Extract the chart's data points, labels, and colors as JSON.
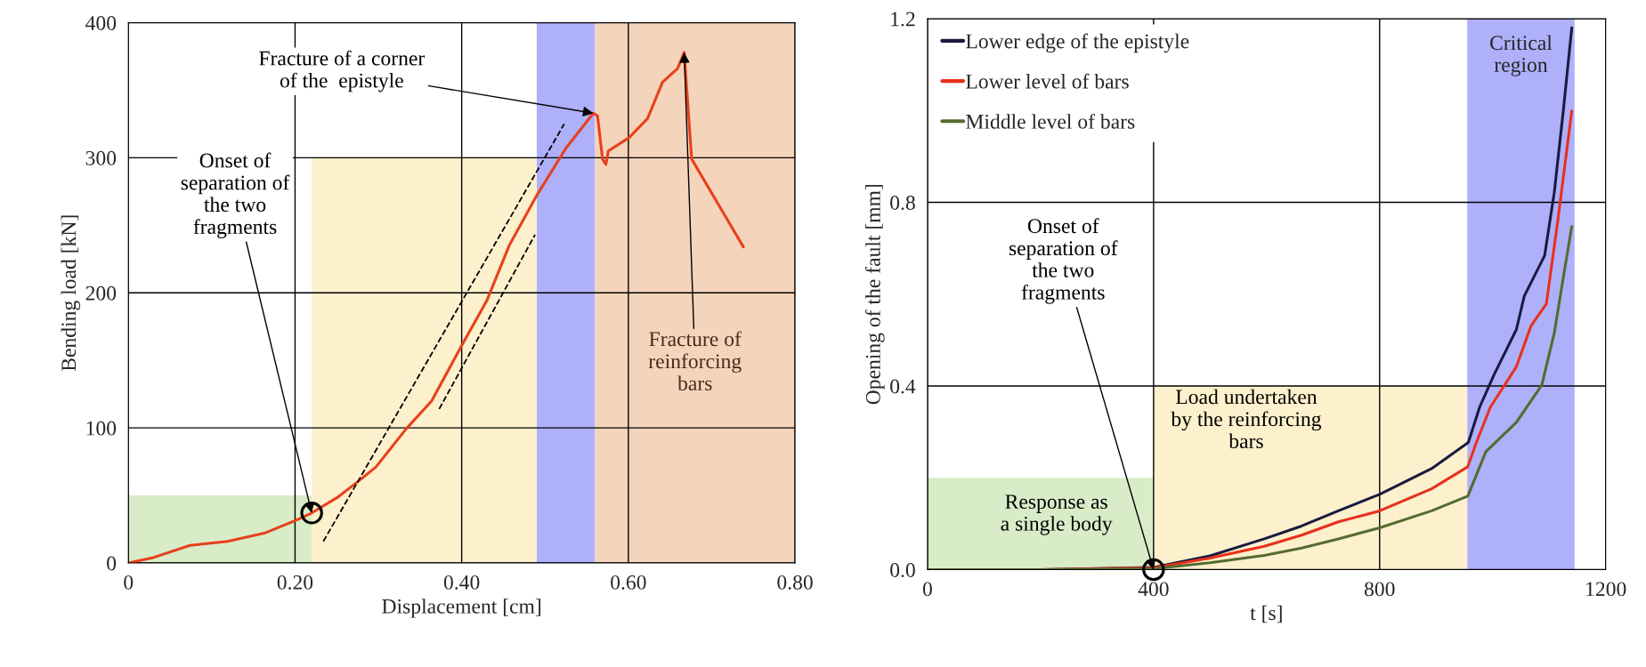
{
  "chart_data": [
    {
      "type": "line",
      "xlabel": "Displacement [cm]",
      "ylabel": "Bending load [kN]",
      "xlim": [
        0,
        0.8
      ],
      "ylim": [
        0,
        400
      ],
      "xticks": [
        0,
        {
          "value": 0.2,
          "label": "0.20"
        },
        {
          "value": 0.4,
          "label": "0.40"
        },
        {
          "value": 0.6,
          "label": "0.60"
        },
        {
          "value": 0.8,
          "label": "0.80"
        }
      ],
      "yticks": [
        0,
        100,
        200,
        300,
        400
      ],
      "grid": true,
      "legend": false,
      "series": [
        {
          "type": "area",
          "color": "#d8ecc8",
          "x": [
            0,
            0.22
          ],
          "values": [
            50,
            50
          ]
        },
        {
          "type": "area",
          "color": "#fdf0cc",
          "x": [
            0.22,
            0.49
          ],
          "values": [
            300,
            300
          ]
        },
        {
          "color": "#e8401c",
          "x": [
            0,
            0.03,
            0.074,
            0.119,
            0.163,
            0.199,
            0.22,
            0.252,
            0.275,
            0.297,
            0.333,
            0.364,
            0.4,
            0.43,
            0.457,
            0.489,
            0.525,
            0.558,
            0.563,
            0.569,
            0.573,
            0.576,
            0.601,
            0.623,
            0.641,
            0.659,
            0.667,
            0.676,
            0.738
          ],
          "values": [
            0,
            4,
            13,
            16,
            22,
            31,
            37,
            49,
            60,
            71,
            99,
            120,
            161,
            194,
            235,
            271,
            307,
            333,
            331,
            299,
            295,
            305,
            315,
            329,
            356,
            366,
            378,
            299,
            234
          ]
        },
        {
          "color": "#000000",
          "line_style": "dashed",
          "x": [
            0.234,
            0.523
          ],
          "values": [
            16,
            325
          ]
        },
        {
          "color": "#000000",
          "line_style": "dashed",
          "x": [
            0.373,
            0.488
          ],
          "values": [
            114,
            243
          ]
        },
        {
          "type": "scatter",
          "color": "#000000",
          "marker": "circle",
          "x": [
            0.22
          ],
          "values": [
            37
          ]
        }
      ],
      "bands": [
        {
          "axis": "x",
          "from": 0.49,
          "to": 0.56,
          "color": "#aeb0fa"
        },
        {
          "axis": "x",
          "from": 0.56,
          "to": 0.8,
          "color": "#f5d4bc"
        }
      ],
      "annotations": [
        {
          "text": "Onset of\nseparation of\nthe two\nfragments",
          "x": 0.22,
          "y": 37
        },
        {
          "text": "Fracture of a corner\nof the  epistyle",
          "x": 0.558,
          "y": 333
        },
        {
          "text": "Fracture of\nreinforcing\nbars",
          "x": 0.667,
          "y": 378
        }
      ]
    },
    {
      "type": "line",
      "xlabel": "t [s]",
      "ylabel": "Opening of the fault [mm]",
      "xlim": [
        0,
        1200
      ],
      "ylim": [
        0,
        1.2
      ],
      "xticks": [
        0,
        400,
        800,
        1200
      ],
      "yticks": [
        {
          "value": 0,
          "label": "0.0"
        },
        0.4,
        0.8,
        1.2
      ],
      "grid": true,
      "legend": "top left",
      "series": [
        {
          "type": "area",
          "color": "#d8ecc8",
          "x": [
            0,
            400
          ],
          "values": [
            0.2,
            0.2
          ]
        },
        {
          "type": "area",
          "color": "#fdf0cc",
          "x": [
            400,
            955
          ],
          "values": [
            0.4,
            0.4
          ]
        },
        {
          "name": "Lower edge of the epistyle",
          "color": "#1a1a40",
          "x": [
            0,
            200,
            400,
            500,
            596,
            662,
            727,
            800,
            892,
            957,
            977,
            1003,
            1042,
            1056,
            1092,
            1109,
            1125,
            1140
          ],
          "values": [
            0,
            0,
            0.005,
            0.03,
            0.067,
            0.095,
            0.128,
            0.164,
            0.22,
            0.277,
            0.354,
            0.426,
            0.523,
            0.596,
            0.684,
            0.821,
            0.999,
            1.18
          ]
        },
        {
          "name": "Lower level of bars",
          "color": "#e8301c",
          "x": [
            0,
            200,
            400,
            500,
            596,
            662,
            727,
            800,
            892,
            956,
            970,
            996,
            1042,
            1068,
            1095,
            1115,
            1140
          ],
          "values": [
            0,
            0,
            0.004,
            0.025,
            0.051,
            0.075,
            0.104,
            0.128,
            0.176,
            0.224,
            0.273,
            0.354,
            0.442,
            0.531,
            0.579,
            0.757,
            0.999
          ]
        },
        {
          "name": "Middle level of bars",
          "color": "#556b2f",
          "x": [
            0,
            200,
            400,
            500,
            596,
            662,
            727,
            800,
            892,
            956,
            988,
            1042,
            1087,
            1109,
            1125,
            1140
          ],
          "values": [
            0,
            0,
            0.002,
            0.015,
            0.031,
            0.047,
            0.067,
            0.091,
            0.128,
            0.16,
            0.257,
            0.321,
            0.402,
            0.515,
            0.636,
            0.747
          ]
        },
        {
          "type": "scatter",
          "color": "#000000",
          "marker": "circle",
          "x": [
            400
          ],
          "values": [
            0
          ]
        }
      ],
      "bands": [
        {
          "axis": "x",
          "from": 955,
          "to": 1145,
          "color": "#aeb0fa",
          "label": "Critical\nregion"
        }
      ],
      "annotations": [
        {
          "text": "Onset of\nseparation of\nthe two\nfragments",
          "x": 400,
          "y": 0
        },
        "Response as\na single body",
        "Load undertaken\nby the reinforcing\nbars"
      ]
    }
  ]
}
